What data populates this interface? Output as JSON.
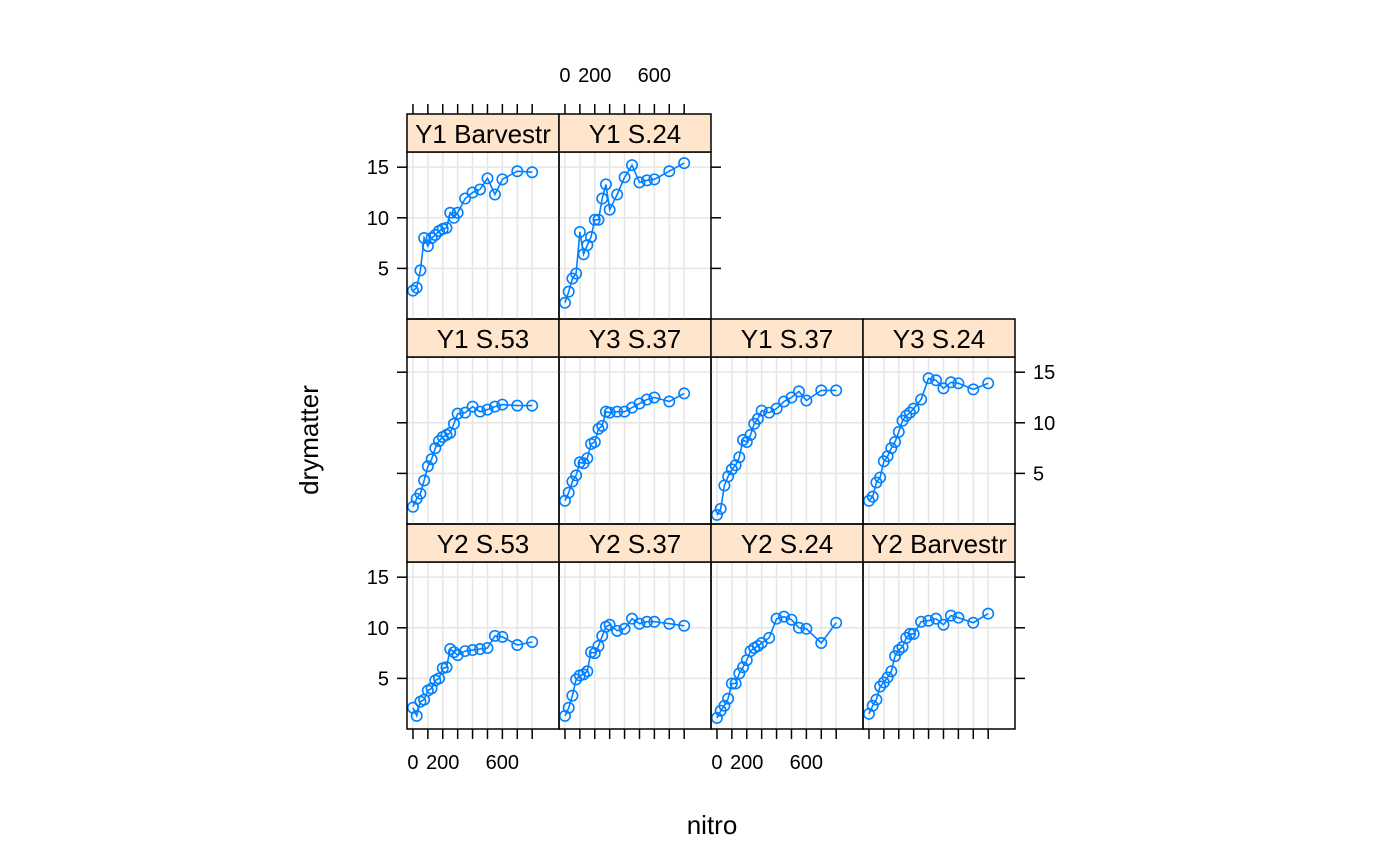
{
  "chart_data": {
    "type": "line",
    "xlabel": "nitro",
    "ylabel": "drymatter",
    "ylim": [
      0,
      16.5
    ],
    "xlim": [
      -40,
      980
    ],
    "y_ticks": [
      5,
      10,
      15
    ],
    "x_ticks": [
      0,
      100,
      200,
      300,
      400,
      500,
      600,
      700,
      800
    ],
    "x_tick_labels": [
      {
        "value": 0,
        "label": "0"
      },
      {
        "value": 200,
        "label": "200"
      },
      {
        "value": 600,
        "label": "600"
      }
    ],
    "layout": {
      "columns": 4,
      "rows": 3
    },
    "grid": true,
    "colors": {
      "series": "#0080ff",
      "strip": "#ffe5cc",
      "grid": "#e6e6e6"
    },
    "panels": [
      {
        "strip": "Y2 S.53",
        "row": 3,
        "col": 1,
        "points": [
          [
            0,
            2.1
          ],
          [
            25,
            1.3
          ],
          [
            50,
            2.7
          ],
          [
            75,
            2.9
          ],
          [
            100,
            3.8
          ],
          [
            125,
            4.0
          ],
          [
            150,
            4.8
          ],
          [
            175,
            5.0
          ],
          [
            200,
            6.0
          ],
          [
            225,
            6.1
          ],
          [
            250,
            7.9
          ],
          [
            275,
            7.6
          ],
          [
            300,
            7.3
          ],
          [
            350,
            7.7
          ],
          [
            400,
            7.8
          ],
          [
            450,
            7.9
          ],
          [
            500,
            8.0
          ],
          [
            550,
            9.2
          ],
          [
            600,
            9.1
          ],
          [
            700,
            8.3
          ],
          [
            800,
            8.6
          ]
        ]
      },
      {
        "strip": "Y2 S.37",
        "row": 3,
        "col": 2,
        "points": [
          [
            0,
            1.3
          ],
          [
            25,
            2.1
          ],
          [
            50,
            3.3
          ],
          [
            75,
            4.9
          ],
          [
            100,
            5.3
          ],
          [
            125,
            5.4
          ],
          [
            150,
            5.7
          ],
          [
            175,
            7.6
          ],
          [
            200,
            7.5
          ],
          [
            225,
            8.2
          ],
          [
            250,
            9.2
          ],
          [
            275,
            10.1
          ],
          [
            300,
            10.3
          ],
          [
            350,
            9.7
          ],
          [
            400,
            9.9
          ],
          [
            450,
            10.9
          ],
          [
            500,
            10.4
          ],
          [
            550,
            10.6
          ],
          [
            600,
            10.6
          ],
          [
            700,
            10.4
          ],
          [
            800,
            10.2
          ]
        ]
      },
      {
        "strip": "Y2 S.24",
        "row": 3,
        "col": 3,
        "points": [
          [
            0,
            1.1
          ],
          [
            25,
            1.8
          ],
          [
            50,
            2.3
          ],
          [
            75,
            3.0
          ],
          [
            100,
            4.5
          ],
          [
            125,
            4.5
          ],
          [
            150,
            5.5
          ],
          [
            175,
            6.1
          ],
          [
            200,
            6.8
          ],
          [
            225,
            7.7
          ],
          [
            250,
            8.0
          ],
          [
            275,
            8.2
          ],
          [
            300,
            8.5
          ],
          [
            350,
            9.0
          ],
          [
            400,
            10.9
          ],
          [
            450,
            11.1
          ],
          [
            500,
            10.8
          ],
          [
            550,
            10.0
          ],
          [
            600,
            9.9
          ],
          [
            700,
            8.5
          ],
          [
            800,
            10.5
          ]
        ]
      },
      {
        "strip": "Y2 Barvestr",
        "row": 3,
        "col": 4,
        "points": [
          [
            0,
            1.5
          ],
          [
            25,
            2.3
          ],
          [
            50,
            2.9
          ],
          [
            75,
            4.2
          ],
          [
            100,
            4.6
          ],
          [
            125,
            5.1
          ],
          [
            150,
            5.7
          ],
          [
            175,
            7.2
          ],
          [
            200,
            7.8
          ],
          [
            225,
            8.1
          ],
          [
            250,
            9.0
          ],
          [
            275,
            9.4
          ],
          [
            300,
            9.4
          ],
          [
            350,
            10.6
          ],
          [
            400,
            10.7
          ],
          [
            450,
            10.9
          ],
          [
            500,
            10.3
          ],
          [
            550,
            11.2
          ],
          [
            600,
            11.0
          ],
          [
            700,
            10.5
          ],
          [
            800,
            11.4
          ]
        ]
      },
      {
        "strip": "Y1 S.53",
        "row": 2,
        "col": 1,
        "points": [
          [
            0,
            1.7
          ],
          [
            25,
            2.5
          ],
          [
            50,
            3.0
          ],
          [
            75,
            4.3
          ],
          [
            100,
            5.7
          ],
          [
            125,
            6.4
          ],
          [
            150,
            7.5
          ],
          [
            175,
            8.2
          ],
          [
            200,
            8.6
          ],
          [
            225,
            8.8
          ],
          [
            250,
            9.0
          ],
          [
            275,
            9.9
          ],
          [
            300,
            10.9
          ],
          [
            350,
            11.0
          ],
          [
            400,
            11.6
          ],
          [
            450,
            11.1
          ],
          [
            500,
            11.3
          ],
          [
            550,
            11.6
          ],
          [
            600,
            11.8
          ],
          [
            700,
            11.7
          ],
          [
            800,
            11.7
          ]
        ]
      },
      {
        "strip": "Y3 S.37",
        "row": 2,
        "col": 2,
        "points": [
          [
            0,
            2.3
          ],
          [
            25,
            3.1
          ],
          [
            50,
            4.2
          ],
          [
            75,
            4.8
          ],
          [
            100,
            6.1
          ],
          [
            125,
            6.0
          ],
          [
            150,
            6.5
          ],
          [
            175,
            7.9
          ],
          [
            200,
            8.1
          ],
          [
            225,
            9.4
          ],
          [
            250,
            9.7
          ],
          [
            275,
            11.1
          ],
          [
            300,
            11.0
          ],
          [
            350,
            11.1
          ],
          [
            400,
            11.1
          ],
          [
            450,
            11.5
          ],
          [
            500,
            11.9
          ],
          [
            550,
            12.3
          ],
          [
            600,
            12.5
          ],
          [
            700,
            12.1
          ],
          [
            800,
            12.9
          ]
        ]
      },
      {
        "strip": "Y1 S.37",
        "row": 2,
        "col": 3,
        "points": [
          [
            0,
            0.9
          ],
          [
            25,
            1.5
          ],
          [
            50,
            3.8
          ],
          [
            75,
            4.7
          ],
          [
            100,
            5.4
          ],
          [
            125,
            5.8
          ],
          [
            150,
            6.6
          ],
          [
            175,
            8.3
          ],
          [
            200,
            8.1
          ],
          [
            225,
            8.8
          ],
          [
            250,
            9.9
          ],
          [
            275,
            10.4
          ],
          [
            300,
            11.2
          ],
          [
            350,
            11.0
          ],
          [
            400,
            11.4
          ],
          [
            450,
            12.1
          ],
          [
            500,
            12.5
          ],
          [
            550,
            13.1
          ],
          [
            600,
            12.2
          ],
          [
            700,
            13.2
          ],
          [
            800,
            13.2
          ]
        ]
      },
      {
        "strip": "Y3 S.24",
        "row": 2,
        "col": 4,
        "points": [
          [
            0,
            2.3
          ],
          [
            25,
            2.7
          ],
          [
            50,
            4.1
          ],
          [
            75,
            4.6
          ],
          [
            100,
            6.2
          ],
          [
            125,
            6.7
          ],
          [
            150,
            7.5
          ],
          [
            175,
            8.1
          ],
          [
            200,
            9.1
          ],
          [
            225,
            10.2
          ],
          [
            250,
            10.7
          ],
          [
            275,
            11.0
          ],
          [
            300,
            11.4
          ],
          [
            350,
            12.3
          ],
          [
            400,
            14.4
          ],
          [
            450,
            14.2
          ],
          [
            500,
            13.4
          ],
          [
            550,
            14.0
          ],
          [
            600,
            13.9
          ],
          [
            700,
            13.3
          ],
          [
            800,
            13.9
          ]
        ]
      },
      {
        "strip": "Y1 Barvestr",
        "row": 1,
        "col": 1,
        "points": [
          [
            0,
            2.8
          ],
          [
            25,
            3.1
          ],
          [
            50,
            4.8
          ],
          [
            75,
            8.0
          ],
          [
            100,
            7.2
          ],
          [
            125,
            8.0
          ],
          [
            150,
            8.3
          ],
          [
            175,
            8.7
          ],
          [
            200,
            8.9
          ],
          [
            225,
            9.0
          ],
          [
            250,
            10.5
          ],
          [
            275,
            10.0
          ],
          [
            300,
            10.5
          ],
          [
            350,
            11.9
          ],
          [
            400,
            12.5
          ],
          [
            450,
            12.8
          ],
          [
            500,
            13.9
          ],
          [
            550,
            12.3
          ],
          [
            600,
            13.8
          ],
          [
            700,
            14.6
          ],
          [
            800,
            14.5
          ]
        ]
      },
      {
        "strip": "Y1 S.24",
        "row": 1,
        "col": 2,
        "points": [
          [
            0,
            1.6
          ],
          [
            25,
            2.7
          ],
          [
            50,
            4.0
          ],
          [
            75,
            4.5
          ],
          [
            100,
            8.6
          ],
          [
            125,
            6.4
          ],
          [
            150,
            7.3
          ],
          [
            175,
            8.1
          ],
          [
            200,
            9.8
          ],
          [
            225,
            9.8
          ],
          [
            250,
            11.9
          ],
          [
            275,
            13.3
          ],
          [
            300,
            10.8
          ],
          [
            350,
            12.3
          ],
          [
            400,
            14.0
          ],
          [
            450,
            15.2
          ],
          [
            500,
            13.5
          ],
          [
            550,
            13.7
          ],
          [
            600,
            13.8
          ],
          [
            700,
            14.6
          ],
          [
            800,
            15.4
          ]
        ]
      }
    ]
  }
}
